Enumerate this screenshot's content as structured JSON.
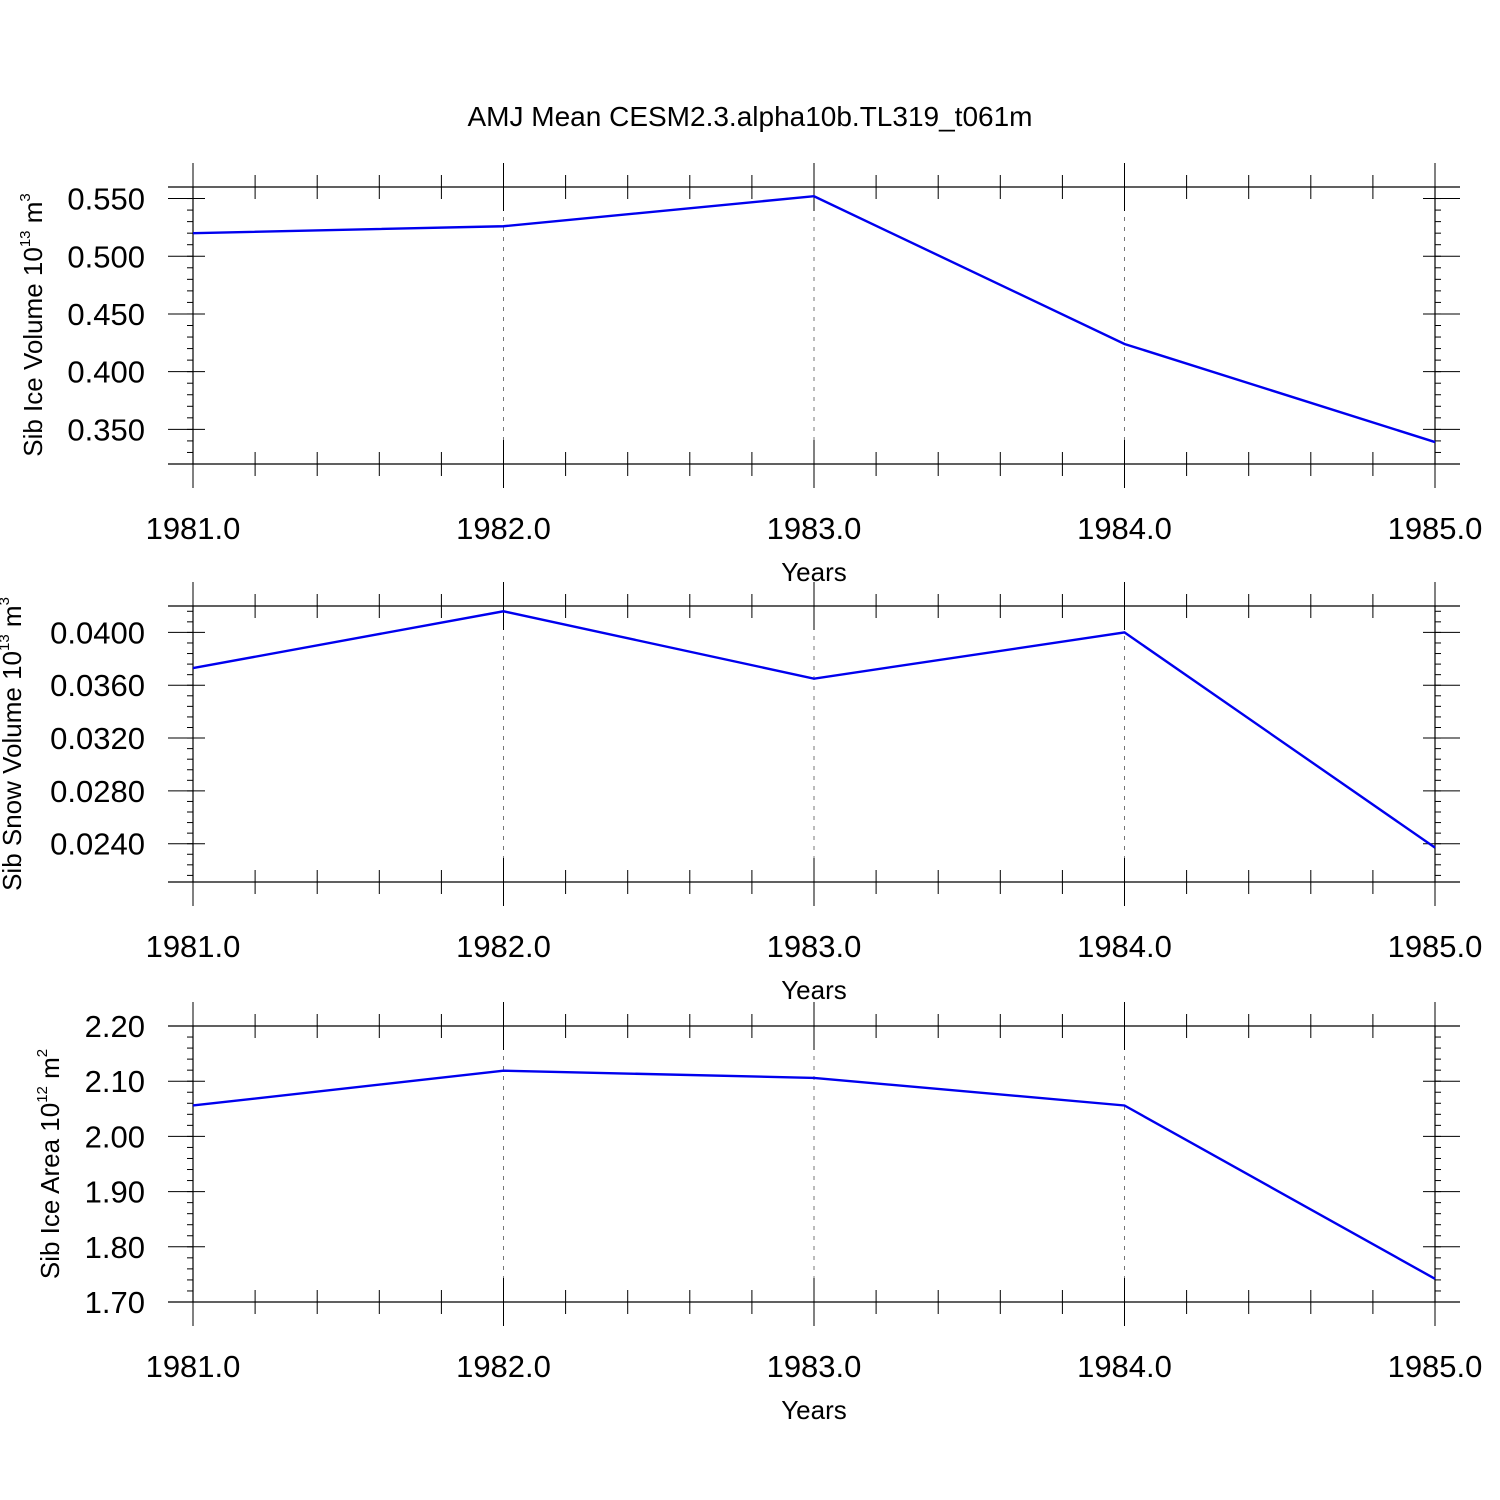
{
  "title": "AMJ Mean CESM2.3.alpha10b.TL319_t061m",
  "colors": {
    "line": "#0000ee",
    "axis": "#000000",
    "grid": "#777777"
  },
  "chart_data": [
    {
      "type": "line",
      "x": [
        1981.0,
        1982.0,
        1983.0,
        1984.0,
        1985.0
      ],
      "series": [
        {
          "values": [
            0.52,
            0.526,
            0.552,
            0.424,
            0.339
          ]
        }
      ],
      "xlabel": "Years",
      "ylabel": {
        "text": "Sib Ice Volume 10",
        "sup1": "13",
        "unit": " m",
        "sup2": "3"
      },
      "xlim": [
        1981.0,
        1985.0
      ],
      "ylim": [
        0.32,
        0.56
      ],
      "xticks": [
        "1981.0",
        "1982.0",
        "1983.0",
        "1984.0",
        "1985.0"
      ],
      "yticks": [
        0.35,
        0.4,
        0.45,
        0.5,
        0.55
      ],
      "ytick_labels": [
        "0.350",
        "0.400",
        "0.450",
        "0.500",
        "0.550"
      ],
      "grid": "x-dashed"
    },
    {
      "type": "line",
      "x": [
        1981.0,
        1982.0,
        1983.0,
        1984.0,
        1985.0
      ],
      "series": [
        {
          "values": [
            0.0373,
            0.0416,
            0.0365,
            0.04,
            0.0237
          ]
        }
      ],
      "xlabel": "Years",
      "ylabel": {
        "text": "Sib Snow Volume 10",
        "sup1": "13",
        "unit": " m",
        "sup2": "3"
      },
      "xlim": [
        1981.0,
        1985.0
      ],
      "ylim": [
        0.0211,
        0.042
      ],
      "xticks": [
        "1981.0",
        "1982.0",
        "1983.0",
        "1984.0",
        "1985.0"
      ],
      "yticks": [
        0.024,
        0.028,
        0.032,
        0.036,
        0.04
      ],
      "ytick_labels": [
        "0.0240",
        "0.0280",
        "0.0320",
        "0.0360",
        "0.0400"
      ],
      "grid": "x-dashed"
    },
    {
      "type": "line",
      "x": [
        1981.0,
        1982.0,
        1983.0,
        1984.0,
        1985.0
      ],
      "series": [
        {
          "values": [
            2.056,
            2.119,
            2.106,
            2.056,
            1.742
          ]
        }
      ],
      "xlabel": "Years",
      "ylabel": {
        "text": "Sib Ice Area 10",
        "sup1": "12",
        "unit": " m",
        "sup2": "2"
      },
      "xlim": [
        1981.0,
        1985.0
      ],
      "ylim": [
        1.7,
        2.2
      ],
      "xticks": [
        "1981.0",
        "1982.0",
        "1983.0",
        "1984.0",
        "1985.0"
      ],
      "yticks": [
        1.7,
        1.8,
        1.9,
        2.0,
        2.1,
        2.2
      ],
      "ytick_labels": [
        "1.70",
        "1.80",
        "1.90",
        "2.00",
        "2.10",
        "2.20"
      ],
      "grid": "x-dashed"
    }
  ]
}
